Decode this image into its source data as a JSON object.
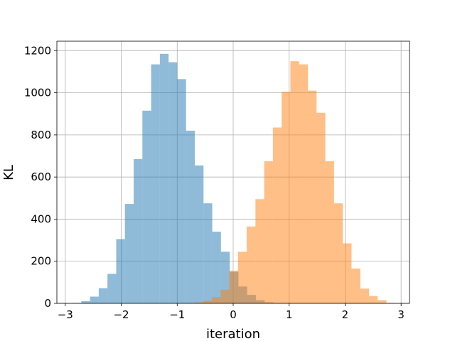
{
  "chart_data": {
    "type": "bar",
    "title": "",
    "xlabel": "iteration",
    "ylabel": "KL",
    "xlim": [
      -3.15,
      3.15
    ],
    "ylim": [
      0,
      1245
    ],
    "grid": true,
    "bin_width": 0.156,
    "xticks": [
      -3,
      -2,
      -1,
      0,
      1,
      2,
      3
    ],
    "xtick_labels": [
      "−3",
      "−2",
      "−1",
      "0",
      "1",
      "2",
      "3"
    ],
    "yticks": [
      0,
      200,
      400,
      600,
      800,
      1000,
      1200
    ],
    "ytick_labels": [
      "0",
      "200",
      "400",
      "600",
      "800",
      "1000",
      "1200"
    ],
    "series": [
      {
        "color": "#1f77b4",
        "opacity": 0.5,
        "bin_starts": [
          -2.87,
          -2.714,
          -2.558,
          -2.402,
          -2.246,
          -2.09,
          -1.934,
          -1.778,
          -1.622,
          -1.466,
          -1.31,
          -1.154,
          -0.998,
          -0.842,
          -0.686,
          -0.53,
          -0.374,
          -0.218,
          -0.062,
          0.094,
          0.25,
          0.406,
          0.562,
          0.718
        ],
        "values": [
          2,
          10,
          32,
          72,
          140,
          305,
          472,
          685,
          915,
          1135,
          1185,
          1145,
          1065,
          820,
          655,
          475,
          340,
          245,
          150,
          80,
          40,
          15,
          5,
          2
        ]
      },
      {
        "color": "#ff7f0e",
        "opacity": 0.5,
        "bin_starts": [
          -0.85,
          -0.694,
          -0.538,
          -0.382,
          -0.226,
          -0.07,
          0.086,
          0.242,
          0.398,
          0.554,
          0.71,
          0.866,
          1.022,
          1.178,
          1.334,
          1.49,
          1.646,
          1.802,
          1.958,
          2.114,
          2.27,
          2.426,
          2.582,
          2.738
        ],
        "values": [
          2,
          5,
          12,
          30,
          65,
          155,
          245,
          365,
          495,
          675,
          835,
          1005,
          1150,
          1135,
          1010,
          905,
          675,
          475,
          285,
          165,
          70,
          35,
          15,
          2
        ]
      }
    ]
  }
}
